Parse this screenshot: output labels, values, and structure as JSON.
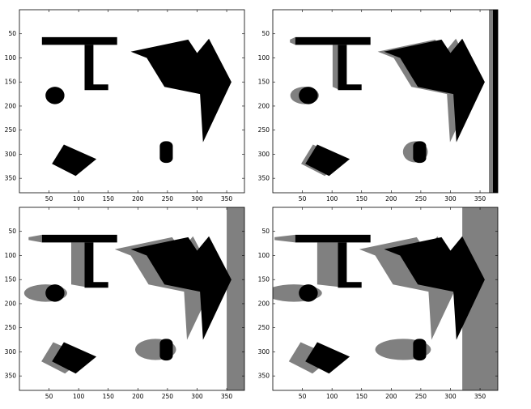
{
  "figure": {
    "description_free": true,
    "axis": {
      "xlim": [
        0,
        380
      ],
      "ylim": [
        0,
        380
      ],
      "y_inverted": true,
      "xticks": [
        50,
        100,
        150,
        200,
        250,
        300,
        350
      ],
      "yticks": [
        50,
        100,
        150,
        200,
        250,
        300,
        350
      ],
      "xtick_labels": [
        "50",
        "100",
        "150",
        "200",
        "250",
        "300",
        "350"
      ],
      "ytick_labels": [
        "50",
        "100",
        "150",
        "200",
        "250",
        "300",
        "350"
      ]
    },
    "colors": {
      "object": "#000000",
      "shadow": "#808080",
      "background": "#ffffff"
    },
    "panels": [
      {
        "id": "top-left",
        "wall_x": null,
        "shadow_level": 0
      },
      {
        "id": "top-right",
        "wall_x": 365,
        "shadow_level": 1
      },
      {
        "id": "bottom-left",
        "wall_x": 350,
        "shadow_level": 2
      },
      {
        "id": "bottom-right",
        "wall_x": 320,
        "shadow_level": 3
      }
    ]
  }
}
